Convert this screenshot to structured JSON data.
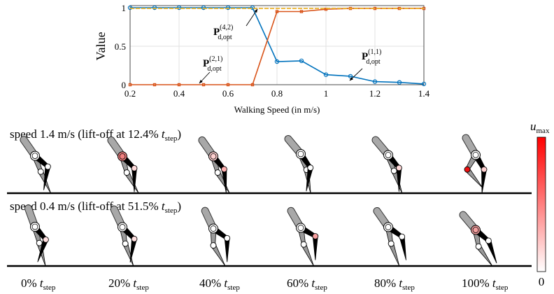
{
  "chart_data": {
    "type": "line",
    "xlabel": "Walking Speed (in m/s)",
    "ylabel": "Value",
    "x": [
      0.2,
      0.3,
      0.4,
      0.5,
      0.6,
      0.7,
      0.8,
      0.9,
      1.0,
      1.1,
      1.2,
      1.3,
      1.4
    ],
    "series": [
      {
        "color": "#0072bd",
        "marker": "circle",
        "values": [
          1,
          1,
          1,
          1,
          1,
          1,
          0.3,
          0.31,
          0.13,
          0.11,
          0.04,
          0.03,
          0.01
        ]
      },
      {
        "color": "#d95319",
        "marker": "square",
        "values": [
          0,
          0,
          0,
          0,
          0,
          0,
          0.95,
          0.95,
          0.98,
          0.99,
          0.99,
          0.99,
          0.99
        ]
      },
      {
        "color": "#edb120",
        "marker": "none",
        "values": [
          0.99,
          0.99,
          0.99,
          0.99,
          0.99,
          0.99,
          0.99,
          0.99,
          0.99,
          0.99,
          0.99,
          0.99,
          0.99
        ]
      }
    ],
    "annotations": [
      {
        "base": "P",
        "sup": "(4,2)",
        "sub": "d,opt"
      },
      {
        "base": "P",
        "sup": "(2,1)",
        "sub": "d,opt"
      },
      {
        "base": "P",
        "sup": "(1,1)",
        "sub": "d,opt"
      }
    ],
    "xlim": [
      0.2,
      1.4
    ],
    "ylim": [
      0,
      1
    ],
    "xticks": [
      0.2,
      0.4,
      0.6,
      0.8,
      1,
      1.2,
      1.4
    ],
    "yticks": [
      0,
      0.5,
      1
    ],
    "grid": true
  },
  "figure": {
    "rows": [
      {
        "text": "speed 1.4 m/s (lift-off at 12.4% ",
        "t": "t",
        "sub": "step",
        "end": ")"
      },
      {
        "text": "speed 0.4 m/s (lift-off at 51.5% ",
        "t": "t",
        "sub": "step",
        "end": ")"
      }
    ],
    "columns": [
      {
        "text": "0% ",
        "t": "t",
        "sub": "step"
      },
      {
        "text": "20% ",
        "t": "t",
        "sub": "step"
      },
      {
        "text": "40% ",
        "t": "t",
        "sub": "step"
      },
      {
        "text": "60% ",
        "t": "t",
        "sub": "step"
      },
      {
        "text": "80% ",
        "t": "t",
        "sub": "step"
      },
      {
        "text": "100% ",
        "t": "t",
        "sub": "step"
      }
    ],
    "colorbar": {
      "top": {
        "base": "u",
        "sub": "max"
      },
      "bottom": "0"
    }
  }
}
